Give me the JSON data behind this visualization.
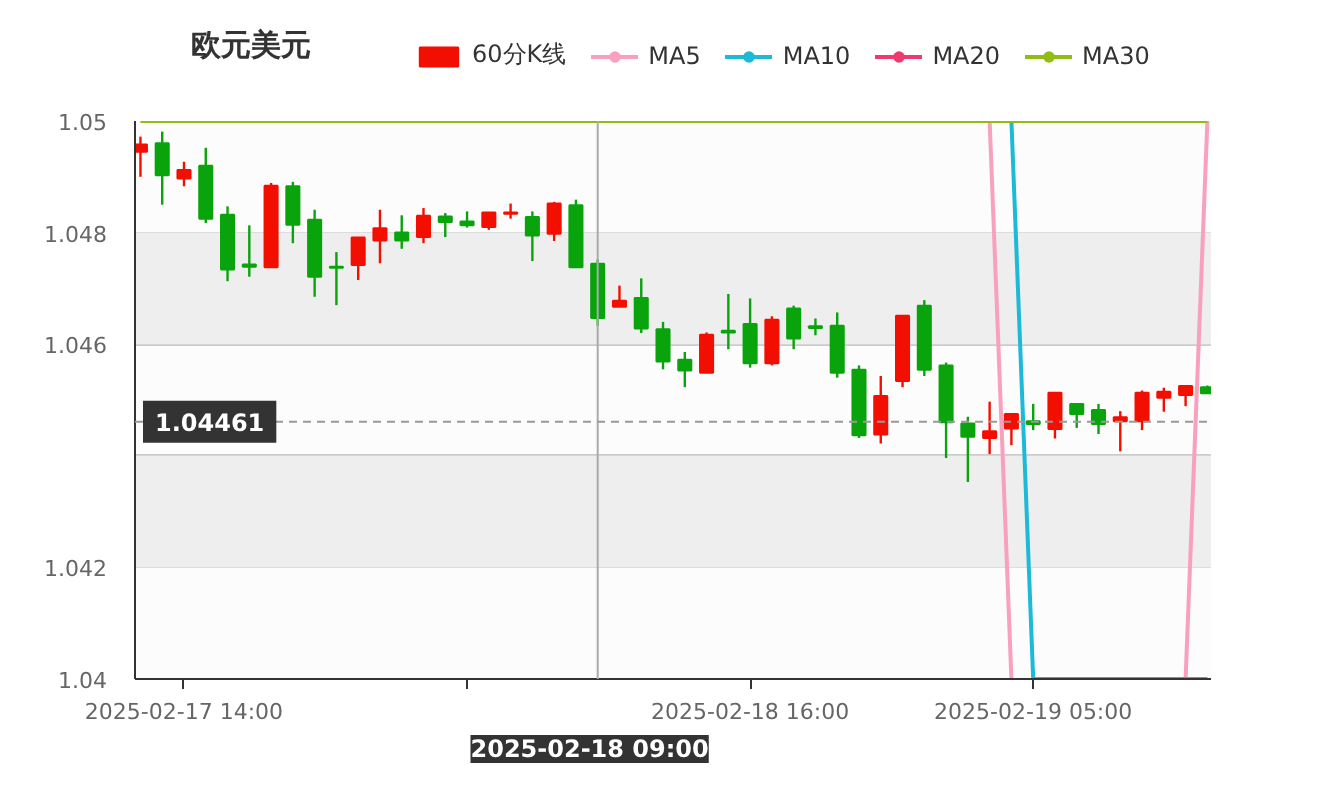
{
  "chart_data": {
    "type": "candlestick",
    "title": "欧元美元",
    "x": [
      "2025-02-17T12:00",
      "2025-02-17T13:00",
      "2025-02-17T14:00",
      "2025-02-17T15:00",
      "2025-02-17T16:00",
      "2025-02-17T17:00",
      "2025-02-17T18:00",
      "2025-02-17T19:00",
      "2025-02-17T20:00",
      "2025-02-17T21:00",
      "2025-02-17T22:00",
      "2025-02-17T23:00",
      "2025-02-18T00:00",
      "2025-02-18T01:00",
      "2025-02-18T02:00",
      "2025-02-18T03:00",
      "2025-02-18T04:00",
      "2025-02-18T05:00",
      "2025-02-18T06:00",
      "2025-02-18T07:00",
      "2025-02-18T08:00",
      "2025-02-18T09:00",
      "2025-02-18T10:00",
      "2025-02-18T11:00",
      "2025-02-18T12:00",
      "2025-02-18T13:00",
      "2025-02-18T14:00",
      "2025-02-18T15:00",
      "2025-02-18T16:00",
      "2025-02-18T17:00",
      "2025-02-18T18:00",
      "2025-02-18T19:00",
      "2025-02-18T20:00",
      "2025-02-18T21:00",
      "2025-02-18T22:00",
      "2025-02-18T23:00",
      "2025-02-19T00:00",
      "2025-02-19T01:00",
      "2025-02-19T02:00",
      "2025-02-19T03:00",
      "2025-02-19T04:00",
      "2025-02-19T05:00",
      "2025-02-19T06:00",
      "2025-02-19T07:00",
      "2025-02-19T08:00",
      "2025-02-19T09:00",
      "2025-02-19T10:00",
      "2025-02-19T11:00",
      "2025-02-19T12:00",
      "2025-02-19T13:00"
    ],
    "xlim": [
      "2025-02-17T11:45",
      "2025-02-19T13:10"
    ],
    "xticks": [
      {
        "value": "2025-02-17T14:00",
        "label": "2025-02-17 14:00"
      },
      {
        "value": "2025-02-18T03:00",
        "label": null
      },
      {
        "value": "2025-02-18T16:00",
        "label": "2025-02-18 16:00"
      },
      {
        "value": "2025-02-19T05:00",
        "label": "2025-02-19 05:00"
      }
    ],
    "ylim": [
      1.04,
      1.05
    ],
    "yticks": [
      1.04,
      1.042,
      {
        "value": 1.044,
        "label": null
      },
      1.046,
      1.048,
      1.05
    ],
    "grid": "y",
    "legend": "top",
    "bands": [
      {
        "axis": "y",
        "from": 1.042,
        "to": 1.044,
        "color": "#eeeeee"
      },
      {
        "axis": "y",
        "from": 1.046,
        "to": 1.048,
        "color": "#eeeeee"
      }
    ],
    "ref_lines": [
      {
        "axis": "x",
        "value": "2025-02-18T09:00",
        "label": "2025-02-18 09:00",
        "color": "#aaaaaa",
        "line_style": "solid"
      },
      {
        "axis": "y",
        "value": 1.04461,
        "label": "1.04461",
        "color": "#999999",
        "line_style": "dashed"
      }
    ],
    "series": [
      {
        "name": "MA5",
        "type": "line",
        "color": "#f8a0bd",
        "values": [
          null,
          null,
          null,
          null,
          null,
          null,
          null,
          null,
          null,
          null,
          null,
          null,
          null,
          null,
          null,
          null,
          null,
          null,
          null,
          null,
          null,
          null,
          null,
          null,
          null,
          null,
          null,
          null,
          null,
          null,
          null,
          null,
          null,
          null,
          null,
          null,
          null,
          null,
          null,
          1.05,
          1.04,
          null,
          null,
          null,
          null,
          null,
          null,
          null,
          1.04,
          1.05
        ]
      },
      {
        "name": "MA10",
        "type": "line",
        "color": "#1cbad6",
        "values": [
          null,
          null,
          null,
          null,
          null,
          null,
          null,
          null,
          null,
          null,
          null,
          null,
          null,
          null,
          null,
          null,
          null,
          null,
          null,
          null,
          null,
          null,
          null,
          null,
          null,
          null,
          null,
          null,
          null,
          null,
          null,
          null,
          null,
          null,
          null,
          null,
          null,
          null,
          null,
          null,
          1.05,
          1.04,
          1.04,
          1.04,
          1.04,
          1.04,
          1.04,
          1.04,
          1.04,
          1.04
        ]
      },
      {
        "name": "MA20",
        "type": "line",
        "color": "#ee3a6e",
        "values": [
          null,
          null,
          null,
          null,
          null,
          null,
          null,
          null,
          null,
          null,
          null,
          null,
          null,
          null,
          null,
          null,
          null,
          null,
          null,
          null,
          null,
          null,
          null,
          null,
          null,
          null,
          null,
          null,
          null,
          null,
          null,
          null,
          null,
          null,
          null,
          null,
          null,
          null,
          null,
          null,
          null,
          null,
          null,
          null,
          null,
          null,
          null,
          null,
          null,
          null
        ]
      },
      {
        "name": "MA30",
        "type": "line",
        "color": "#91bd12",
        "values": [
          1.05,
          1.05,
          1.05,
          1.05,
          1.05,
          1.05,
          1.05,
          1.05,
          1.05,
          1.05,
          1.05,
          1.05,
          1.05,
          1.05,
          1.05,
          1.05,
          1.05,
          1.05,
          1.05,
          1.05,
          1.05,
          1.05,
          1.05,
          1.05,
          1.05,
          1.05,
          1.05,
          1.05,
          1.05,
          1.05,
          1.05,
          1.05,
          1.05,
          1.05,
          1.05,
          1.05,
          1.05,
          1.05,
          1.05,
          1.05,
          1.05,
          1.05,
          1.05,
          1.05,
          1.05,
          1.05,
          1.05,
          1.05,
          1.05,
          1.05
        ]
      },
      {
        "name": "60分K线",
        "color": "#f20f00",
        "colors": [
          "#f20f00",
          "#09a30c",
          "#f20f00",
          "#09a30c",
          "#09a30c",
          "#09a30c",
          "#f20f00",
          "#09a30c",
          "#09a30c",
          "#09a30c",
          "#f20f00",
          "#f20f00",
          "#09a30c",
          "#f20f00",
          "#09a30c",
          "#09a30c",
          "#f20f00",
          "#f20f00",
          "#09a30c",
          "#f20f00",
          "#09a30c",
          "#09a30c",
          "#f20f00",
          "#09a30c",
          "#09a30c",
          "#09a30c",
          "#f20f00",
          "#09a30c",
          "#09a30c",
          "#f20f00",
          "#09a30c",
          "#09a30c",
          "#09a30c",
          "#09a30c",
          "#f20f00",
          "#f20f00",
          "#09a30c",
          "#09a30c",
          "#09a30c",
          "#f20f00",
          "#f20f00",
          "#09a30c",
          "#f20f00",
          "#09a30c",
          "#09a30c",
          "#f20f00",
          "#f20f00",
          "#f20f00",
          "#f20f00",
          "#09a30c"
        ],
        "ohlc": [
          [
            1.04945,
            1.04972,
            1.049,
            1.04958
          ],
          [
            1.0496,
            1.04981,
            1.0485,
            1.04903
          ],
          [
            1.04897,
            1.04927,
            1.04883,
            1.04912
          ],
          [
            1.0492,
            1.04952,
            1.04817,
            1.04825
          ],
          [
            1.04832,
            1.04847,
            1.04713,
            1.04734
          ],
          [
            1.04743,
            1.04813,
            1.04721,
            1.04739
          ],
          [
            1.04738,
            1.04889,
            1.04738,
            1.04884
          ],
          [
            1.04883,
            1.04891,
            1.04781,
            1.04814
          ],
          [
            1.04823,
            1.04841,
            1.04685,
            1.04721
          ],
          [
            1.04739,
            1.04765,
            1.0467,
            1.04737
          ],
          [
            1.04742,
            1.04791,
            1.04715,
            1.04791
          ],
          [
            1.04786,
            1.04841,
            1.04745,
            1.04808
          ],
          [
            1.048,
            1.04831,
            1.04771,
            1.04786
          ],
          [
            1.04792,
            1.04844,
            1.04781,
            1.0483
          ],
          [
            1.04829,
            1.04835,
            1.04792,
            1.04819
          ],
          [
            1.0482,
            1.04838,
            1.04809,
            1.04813
          ],
          [
            1.0481,
            1.04836,
            1.04805,
            1.04836
          ],
          [
            1.04834,
            1.04852,
            1.04825,
            1.04836
          ],
          [
            1.04828,
            1.04838,
            1.04749,
            1.04795
          ],
          [
            1.04798,
            1.04855,
            1.04785,
            1.04852
          ],
          [
            1.04849,
            1.04859,
            1.04738,
            1.04738
          ],
          [
            1.04744,
            1.04752,
            1.04633,
            1.04647
          ],
          [
            1.04667,
            1.04705,
            1.04667,
            1.04678
          ],
          [
            1.04683,
            1.04718,
            1.0462,
            1.04628
          ],
          [
            1.04627,
            1.0464,
            1.04555,
            1.04569
          ],
          [
            1.04572,
            1.04586,
            1.04523,
            1.04553
          ],
          [
            1.04549,
            1.04621,
            1.04549,
            1.04617
          ],
          [
            1.04624,
            1.0469,
            1.04591,
            1.04621
          ],
          [
            1.04636,
            1.04682,
            1.04558,
            1.04566
          ],
          [
            1.04566,
            1.0465,
            1.04562,
            1.04644
          ],
          [
            1.04664,
            1.04669,
            1.04591,
            1.0461
          ],
          [
            1.04632,
            1.04646,
            1.04616,
            1.04629
          ],
          [
            1.04633,
            1.04657,
            1.0454,
            1.04549
          ],
          [
            1.04554,
            1.04562,
            1.04432,
            1.04437
          ],
          [
            1.04438,
            1.04543,
            1.04422,
            1.04507
          ],
          [
            1.04534,
            1.04651,
            1.04523,
            1.04651
          ],
          [
            1.04669,
            1.04679,
            1.04543,
            1.04554
          ],
          [
            1.04562,
            1.04567,
            1.04396,
            1.0446
          ],
          [
            1.04458,
            1.0447,
            1.04353,
            1.04434
          ],
          [
            1.04432,
            1.04497,
            1.04403,
            1.04444
          ],
          [
            1.04449,
            1.04475,
            1.04419,
            1.04475
          ],
          [
            1.04462,
            1.04493,
            1.04446,
            1.04457
          ],
          [
            1.04448,
            1.04513,
            1.04431,
            1.04513
          ],
          [
            1.04493,
            1.04493,
            1.0445,
            1.04475
          ],
          [
            1.04482,
            1.04493,
            1.04439,
            1.04457
          ],
          [
            1.04462,
            1.0448,
            1.04408,
            1.04469
          ],
          [
            1.04462,
            1.04517,
            1.04446,
            1.04513
          ],
          [
            1.04504,
            1.04522,
            1.04479,
            1.04515
          ],
          [
            1.04509,
            1.04525,
            1.04489,
            1.04525
          ],
          [
            1.04523,
            1.04526,
            1.04512,
            1.04512
          ]
        ]
      }
    ]
  }
}
